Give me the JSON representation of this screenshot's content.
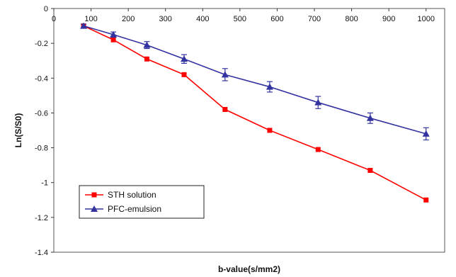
{
  "chart_data": {
    "type": "line",
    "title": "",
    "xlabel": "b-value(s/mm2)",
    "ylabel": "Ln(S/S0)",
    "xlim": [
      0,
      1050
    ],
    "ylim": [
      -1.4,
      0
    ],
    "x_ticks": [
      0,
      100,
      200,
      300,
      400,
      500,
      600,
      700,
      800,
      900,
      1000
    ],
    "y_ticks": [
      0,
      -0.2,
      -0.4,
      -0.6,
      -0.8,
      -1,
      -1.2,
      -1.4
    ],
    "x_tick_labels": [
      "0",
      "100",
      "200",
      "300",
      "400",
      "500",
      "600",
      "700",
      "800",
      "900",
      "1000"
    ],
    "y_tick_labels": [
      "0",
      "-0.2",
      "-0.4",
      "-0.6",
      "-0.8",
      "-1",
      "-1.2",
      "-1.4"
    ],
    "grid": false,
    "legend_position": "bottom-left",
    "series": [
      {
        "name": "STH solution",
        "color": "#ff0000",
        "marker": "square",
        "x": [
          80,
          160,
          250,
          350,
          460,
          580,
          710,
          850,
          1000
        ],
        "y": [
          -0.1,
          -0.18,
          -0.29,
          -0.38,
          -0.58,
          -0.7,
          -0.81,
          -0.93,
          -1.1
        ]
      },
      {
        "name": "PFC-emulsion",
        "color": "#3333a0",
        "marker": "triangle",
        "x": [
          80,
          160,
          250,
          350,
          460,
          580,
          710,
          850,
          1000
        ],
        "y": [
          -0.1,
          -0.15,
          -0.21,
          -0.29,
          -0.38,
          -0.45,
          -0.54,
          -0.63,
          -0.72
        ],
        "error": [
          0.01,
          0.015,
          0.02,
          0.025,
          0.035,
          0.03,
          0.035,
          0.03,
          0.035
        ]
      }
    ]
  }
}
